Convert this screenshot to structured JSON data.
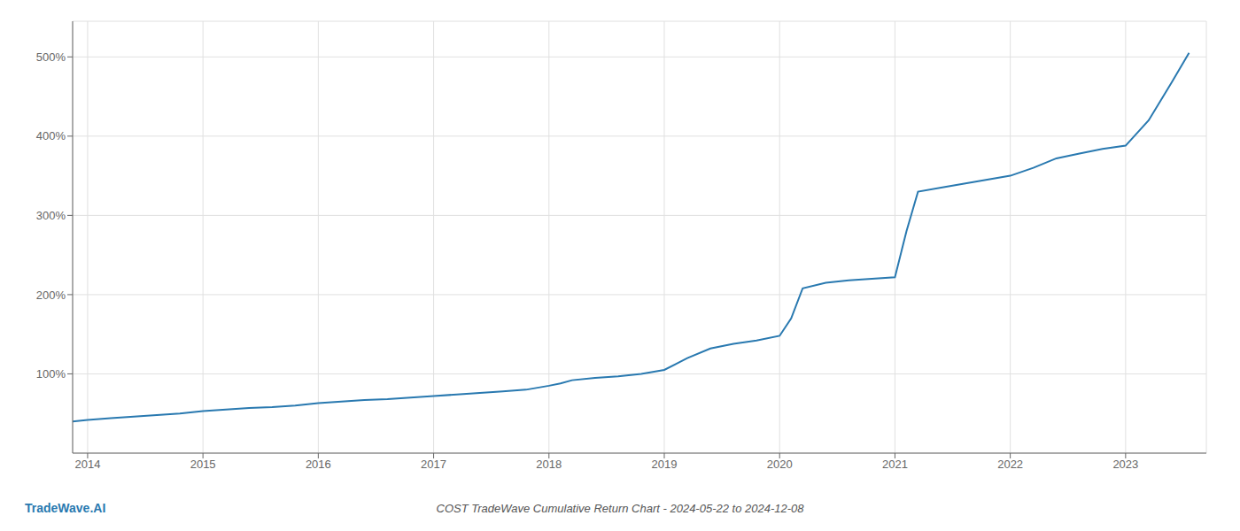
{
  "chart_data": {
    "type": "line",
    "title": "COST TradeWave Cumulative Return Chart - 2024-05-22 to 2024-12-08",
    "annotations": [
      "TradeWave.AI"
    ],
    "x": [
      2013.87,
      2014.0,
      2014.2,
      2014.4,
      2014.6,
      2014.8,
      2015.0,
      2015.2,
      2015.4,
      2015.6,
      2015.8,
      2016.0,
      2016.2,
      2016.4,
      2016.6,
      2016.8,
      2017.0,
      2017.2,
      2017.4,
      2017.6,
      2017.8,
      2018.0,
      2018.1,
      2018.2,
      2018.4,
      2018.6,
      2018.8,
      2019.0,
      2019.2,
      2019.4,
      2019.6,
      2019.8,
      2020.0,
      2020.1,
      2020.2,
      2020.4,
      2020.6,
      2020.8,
      2021.0,
      2021.1,
      2021.2,
      2021.4,
      2021.6,
      2021.8,
      2022.0,
      2022.2,
      2022.4,
      2022.6,
      2022.8,
      2023.0,
      2023.2,
      2023.4,
      2023.55
    ],
    "values": [
      40,
      42,
      44,
      46,
      48,
      50,
      53,
      55,
      57,
      58,
      60,
      63,
      65,
      67,
      68,
      70,
      72,
      74,
      76,
      78,
      80,
      85,
      88,
      92,
      95,
      97,
      100,
      105,
      120,
      132,
      138,
      142,
      148,
      170,
      208,
      215,
      218,
      220,
      222,
      280,
      330,
      335,
      340,
      345,
      350,
      360,
      372,
      378,
      384,
      388,
      420,
      468,
      505
    ],
    "color": "#2979b0",
    "xlim": [
      2013.87,
      2023.7
    ],
    "xticks": [
      2014,
      2015,
      2016,
      2017,
      2018,
      2019,
      2020,
      2021,
      2022,
      2023
    ],
    "ylim": [
      0,
      545
    ],
    "yticks": [
      {
        "value": 100,
        "label": "100%"
      },
      {
        "value": 200,
        "label": "200%"
      },
      {
        "value": 300,
        "label": "300%"
      },
      {
        "value": 400,
        "label": "400%"
      },
      {
        "value": 500,
        "label": "500%"
      }
    ],
    "grid": true
  }
}
